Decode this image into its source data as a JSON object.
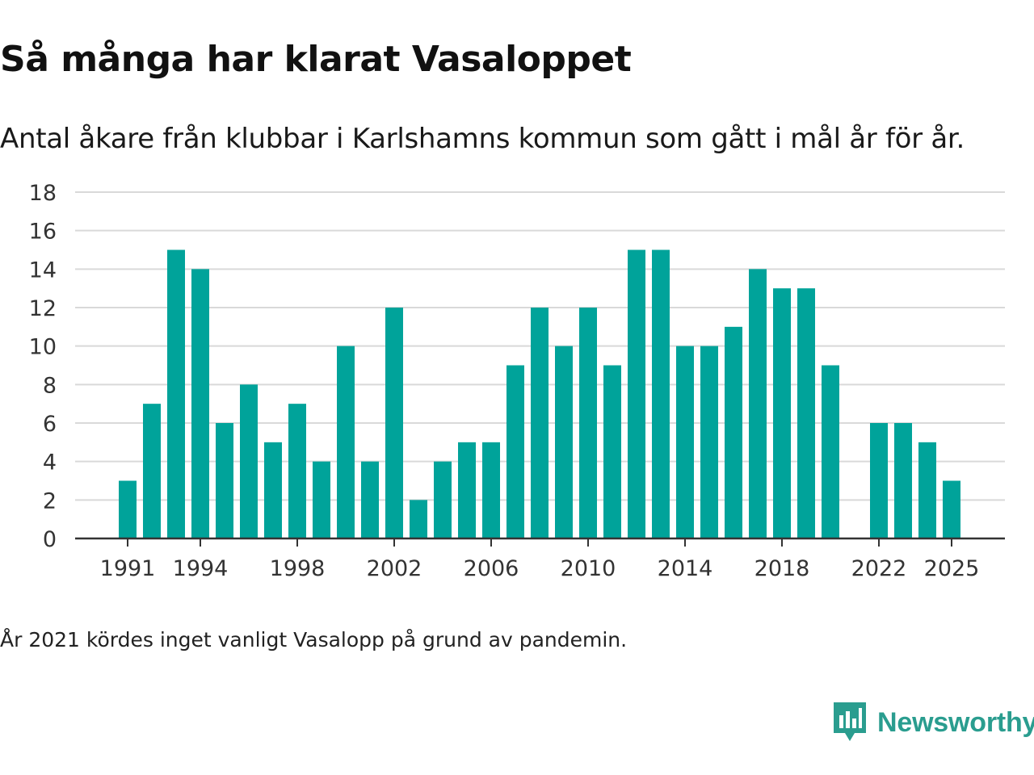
{
  "title": "Så många har klarat Vasaloppet",
  "subtitle": "Antal åkare från klubbar i Karlshamns kommun som gått i mål år för år.",
  "note": "År 2021 kördes inget vanligt Vasalopp på grund av pandemin.",
  "brand": {
    "name": "Newsworthy",
    "icon": "newsworthy-logo-icon",
    "color": "#2a9d8f"
  },
  "colors": {
    "bar": "#00a39a",
    "grid": "#d9d9d9",
    "axis": "#333333"
  },
  "chart_data": {
    "type": "bar",
    "title": "Så många har klarat Vasaloppet",
    "xlabel": "",
    "ylabel": "",
    "categories": [
      1991,
      1992,
      1993,
      1994,
      1995,
      1996,
      1997,
      1998,
      1999,
      2000,
      2001,
      2002,
      2003,
      2004,
      2005,
      2006,
      2007,
      2008,
      2009,
      2010,
      2011,
      2012,
      2013,
      2014,
      2015,
      2016,
      2017,
      2018,
      2019,
      2020,
      2021,
      2022,
      2023,
      2024,
      2025
    ],
    "values": [
      3,
      7,
      15,
      14,
      6,
      8,
      5,
      7,
      4,
      10,
      4,
      12,
      2,
      4,
      5,
      5,
      9,
      12,
      10,
      12,
      9,
      15,
      15,
      10,
      10,
      11,
      14,
      13,
      13,
      9,
      null,
      6,
      6,
      5,
      3
    ],
    "ylim": [
      0,
      18
    ],
    "yticks": [
      0,
      2,
      4,
      6,
      8,
      10,
      12,
      14,
      16,
      18
    ],
    "xticks": [
      1991,
      1994,
      1998,
      2002,
      2006,
      2010,
      2014,
      2018,
      2022,
      2025
    ],
    "grid": true,
    "legend": "none"
  }
}
